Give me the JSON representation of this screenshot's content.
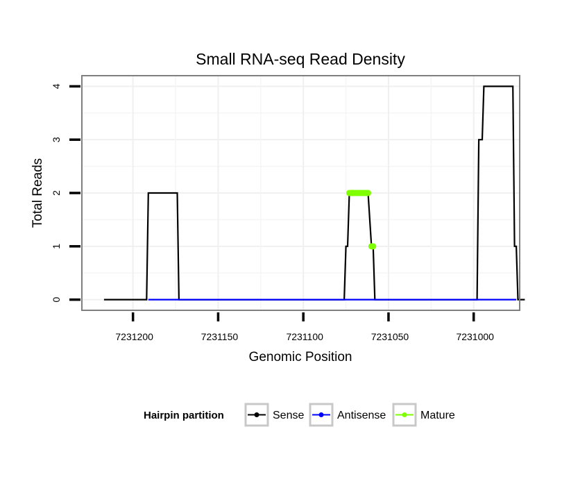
{
  "chart_data": {
    "type": "line",
    "title": "Small RNA-seq Read Density",
    "xlabel": "Genomic Position",
    "ylabel": "Total Reads",
    "x_reversed": true,
    "xlim": [
      7231230,
      7230973
    ],
    "ylim": [
      -0.2,
      4.2
    ],
    "x_ticks": [
      {
        "value": 7231200,
        "label": "7231200"
      },
      {
        "value": 7231150,
        "label": "7231150"
      },
      {
        "value": 7231100,
        "label": "7231100"
      },
      {
        "value": 7231050,
        "label": "7231050"
      },
      {
        "value": 7231000,
        "label": "7231000"
      }
    ],
    "y_ticks": [
      {
        "value": 0,
        "label": "0"
      },
      {
        "value": 1,
        "label": "1"
      },
      {
        "value": 2,
        "label": "2"
      },
      {
        "value": 3,
        "label": "3"
      },
      {
        "value": 4,
        "label": "4"
      }
    ],
    "grid": true,
    "legend": {
      "title": "Hairpin partition",
      "position": "bottom"
    },
    "series": [
      {
        "name": "Sense",
        "color": "#000000",
        "style": "line",
        "points": [
          [
            7231217,
            0
          ],
          [
            7231192,
            0
          ],
          [
            7231191,
            2
          ],
          [
            7231174,
            2
          ],
          [
            7231173,
            0
          ],
          [
            7231076,
            0
          ],
          [
            7231075,
            1
          ],
          [
            7231074,
            1
          ],
          [
            7231073,
            2
          ],
          [
            7231062,
            2
          ],
          [
            7231060,
            1
          ],
          [
            7231059,
            1
          ],
          [
            7231058,
            0
          ],
          [
            7230998,
            0
          ],
          [
            7230997,
            3
          ],
          [
            7230995,
            3
          ],
          [
            7230994,
            4
          ],
          [
            7230977,
            4
          ],
          [
            7230976,
            1
          ],
          [
            7230975,
            1
          ],
          [
            7230974,
            0
          ],
          [
            7230970,
            0
          ]
        ]
      },
      {
        "name": "Antisense",
        "color": "#0000ff",
        "style": "line",
        "points": [
          [
            7231191,
            0
          ],
          [
            7231174,
            0
          ],
          [
            7231075,
            0
          ],
          [
            7231059,
            0
          ],
          [
            7230997,
            0
          ],
          [
            7230975,
            0
          ]
        ]
      },
      {
        "name": "Mature",
        "color": "#7fff00",
        "style": "points",
        "points": [
          [
            7231073,
            2
          ],
          [
            7231072,
            2
          ],
          [
            7231071,
            2
          ],
          [
            7231070,
            2
          ],
          [
            7231069,
            2
          ],
          [
            7231068,
            2
          ],
          [
            7231067,
            2
          ],
          [
            7231066,
            2
          ],
          [
            7231065,
            2
          ],
          [
            7231064,
            2
          ],
          [
            7231063,
            2
          ],
          [
            7231062,
            2
          ],
          [
            7231060,
            1
          ],
          [
            7231059,
            1
          ]
        ]
      }
    ]
  }
}
